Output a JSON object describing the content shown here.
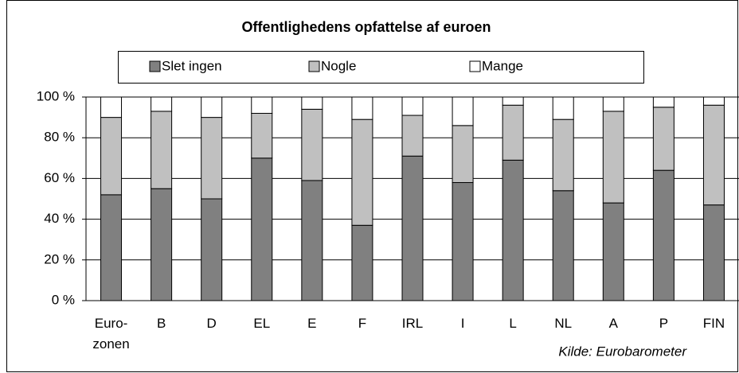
{
  "chart_data": {
    "type": "stacked_bar",
    "title": "Offentlighedens opfattelse af euroen",
    "categories": [
      "Euro- zonen",
      "B",
      "D",
      "EL",
      "E",
      "F",
      "IRL",
      "I",
      "L",
      "NL",
      "A",
      "P",
      "FIN"
    ],
    "series": [
      {
        "name": "Slet ingen",
        "color": "#808080",
        "values": [
          52,
          55,
          50,
          70,
          59,
          37,
          71,
          58,
          69,
          54,
          48,
          64,
          47
        ]
      },
      {
        "name": "Nogle",
        "color": "#c0c0c0",
        "values": [
          38,
          38,
          40,
          22,
          35,
          52,
          20,
          28,
          27,
          35,
          45,
          31,
          49
        ]
      },
      {
        "name": "Mange",
        "color": "#ffffff",
        "values": [
          10,
          7,
          10,
          8,
          6,
          11,
          9,
          14,
          4,
          11,
          7,
          5,
          4
        ]
      }
    ],
    "ylim": [
      0,
      100
    ],
    "yticks": [
      {
        "value": 0,
        "label": "0 %"
      },
      {
        "value": 20,
        "label": "20 %"
      },
      {
        "value": 40,
        "label": "40 %"
      },
      {
        "value": 60,
        "label": "60 %"
      },
      {
        "value": 80,
        "label": "80 %"
      },
      {
        "value": 100,
        "label": "100 %"
      }
    ],
    "grid": true,
    "source": "Kilde: Eurobarometer"
  }
}
